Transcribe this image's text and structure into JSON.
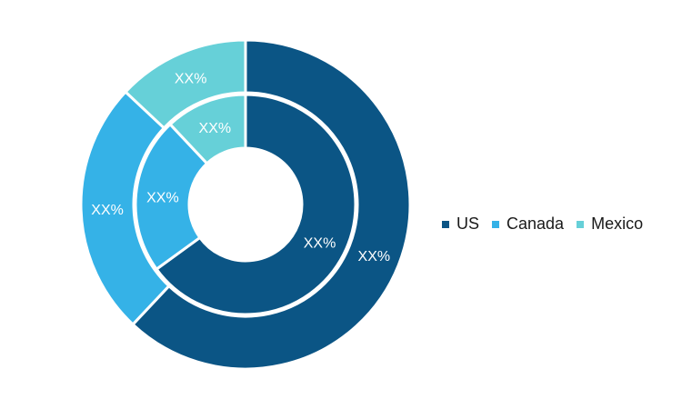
{
  "colors": {
    "US": "#0b5585",
    "Canada": "#35b2e7",
    "Mexico": "#66d0d8"
  },
  "chart_data": {
    "type": "pie",
    "variant": "nested-donut",
    "categories": [
      "US",
      "Canada",
      "Mexico"
    ],
    "series": [
      {
        "ring": "outer",
        "values": [
          62,
          25,
          13
        ],
        "labels": [
          "XX%",
          "XX%",
          "XX%"
        ]
      },
      {
        "ring": "inner",
        "values": [
          65,
          23,
          12
        ],
        "labels": [
          "XX%",
          "XX%",
          "XX%"
        ]
      }
    ],
    "legend": {
      "placement": "right",
      "entries": [
        "US",
        "Canada",
        "Mexico"
      ]
    }
  }
}
